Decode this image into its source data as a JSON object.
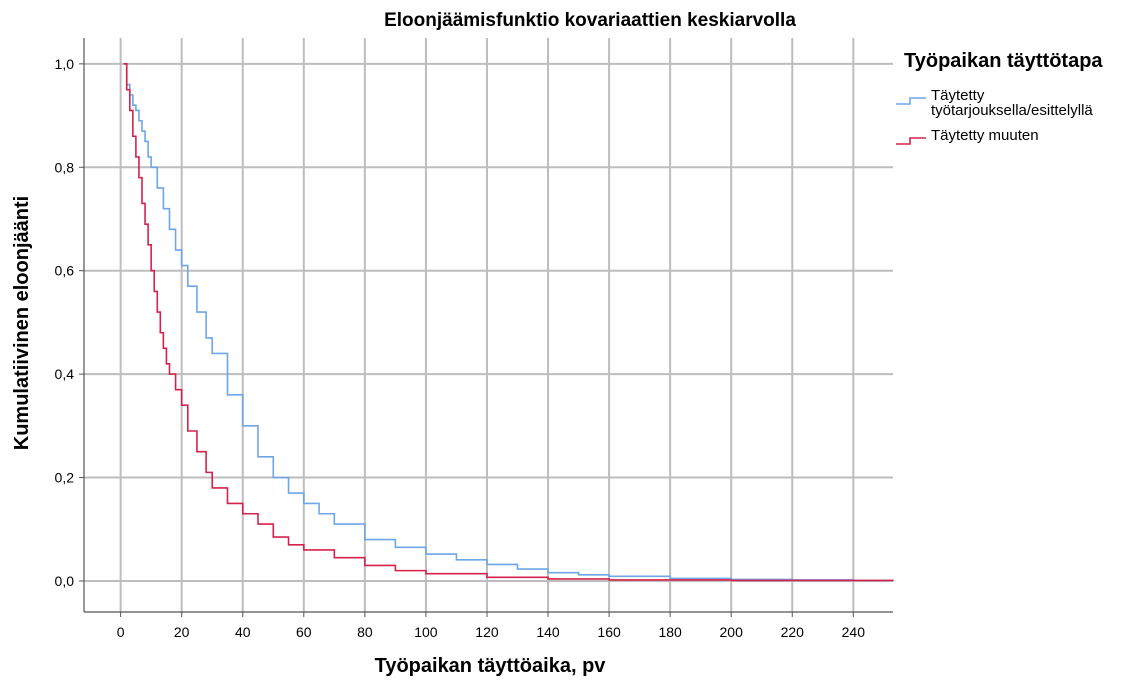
{
  "chart_data": {
    "type": "line",
    "step": true,
    "title": "Eloonjäämisfunktio kovariaattien keskiarvolla",
    "xlabel": "Työpaikan täyttöaika, pv",
    "ylabel": "Kumulatiivinen eloonjäänti",
    "xlim": [
      -12,
      253
    ],
    "ylim": [
      -0.06,
      1.05
    ],
    "x_ticks": [
      "0",
      "20",
      "40",
      "60",
      "80",
      "100",
      "120",
      "140",
      "160",
      "180",
      "200",
      "220",
      "240"
    ],
    "y_ticks": [
      "0,0",
      "0,2",
      "0,4",
      "0,6",
      "0,8",
      "1,0"
    ],
    "grid": true,
    "legend": {
      "title": "Työpaikan täyttötapa",
      "position": "top-right",
      "entries": [
        {
          "lines": [
            "Täytetty",
            "työtarjouksella/esittelyllä"
          ],
          "color": "#6fa6e8"
        },
        {
          "lines": [
            "Täytetty muuten"
          ],
          "color": "#d6224b"
        }
      ]
    },
    "series": [
      {
        "color": "#6fa6e8",
        "x": [
          1,
          2,
          3,
          4,
          5,
          6,
          7,
          8,
          9,
          10,
          12,
          14,
          16,
          18,
          20,
          22,
          25,
          28,
          30,
          35,
          40,
          45,
          50,
          55,
          60,
          65,
          70,
          80,
          90,
          100,
          110,
          120,
          130,
          140,
          150,
          160,
          180,
          200,
          220,
          240,
          253
        ],
        "y": [
          1.0,
          0.96,
          0.94,
          0.92,
          0.91,
          0.89,
          0.87,
          0.85,
          0.82,
          0.8,
          0.76,
          0.72,
          0.68,
          0.64,
          0.61,
          0.57,
          0.52,
          0.47,
          0.44,
          0.36,
          0.3,
          0.24,
          0.2,
          0.17,
          0.15,
          0.13,
          0.11,
          0.08,
          0.065,
          0.052,
          0.041,
          0.032,
          0.023,
          0.016,
          0.012,
          0.009,
          0.005,
          0.003,
          0.002,
          0.001,
          0.001
        ]
      },
      {
        "color": "#d6224b",
        "x": [
          1,
          2,
          3,
          4,
          5,
          6,
          7,
          8,
          9,
          10,
          11,
          12,
          13,
          14,
          15,
          16,
          18,
          20,
          22,
          25,
          28,
          30,
          35,
          40,
          45,
          50,
          55,
          60,
          70,
          80,
          90,
          100,
          120,
          140,
          160,
          200,
          253
        ],
        "y": [
          1.0,
          0.95,
          0.91,
          0.86,
          0.82,
          0.78,
          0.73,
          0.69,
          0.65,
          0.6,
          0.56,
          0.52,
          0.48,
          0.45,
          0.42,
          0.4,
          0.37,
          0.34,
          0.29,
          0.25,
          0.21,
          0.18,
          0.15,
          0.13,
          0.11,
          0.085,
          0.07,
          0.06,
          0.045,
          0.03,
          0.02,
          0.014,
          0.007,
          0.004,
          0.002,
          0.001,
          0.0
        ]
      }
    ]
  }
}
